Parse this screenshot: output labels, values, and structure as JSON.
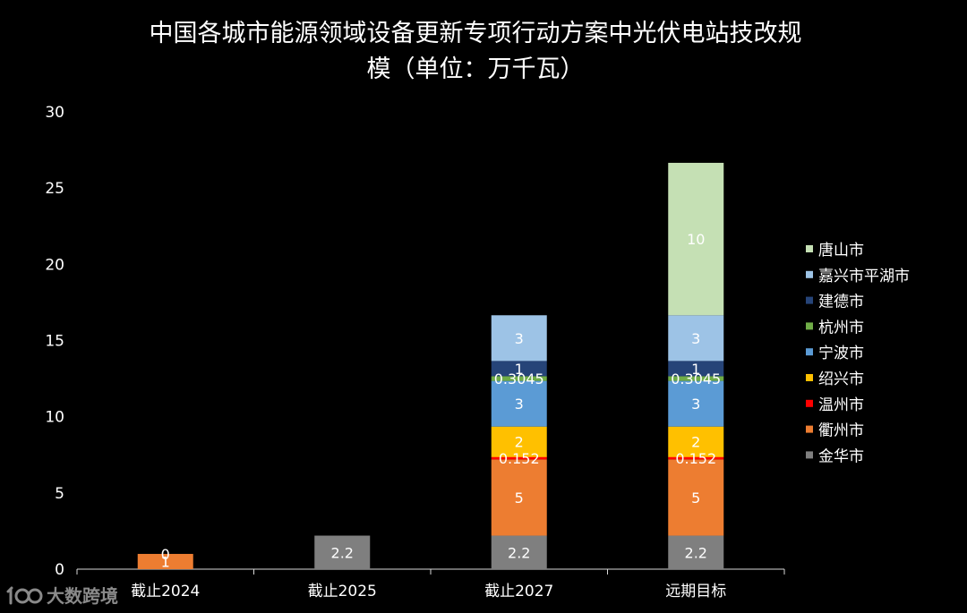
{
  "chart_data": {
    "type": "bar",
    "stacked": true,
    "title_lines": [
      "中国各城市能源领域设备更新专项行动方案中光伏电站技改规",
      "模（单位：万千瓦）"
    ],
    "categories": [
      "截止2024",
      "截止2025",
      "截止2027",
      "远期目标"
    ],
    "ylim": [
      0,
      30
    ],
    "yticks": [
      "0",
      "5",
      "10",
      "15",
      "20",
      "25",
      "30"
    ],
    "ytick_values": [
      0,
      5,
      10,
      15,
      20,
      25,
      30
    ],
    "grid": false,
    "legend_position": "right",
    "series": [
      {
        "name": "金华市",
        "color": "#7f7f7f",
        "values": [
          null,
          2.2,
          2.2,
          2.2
        ],
        "labels": [
          "",
          "2.2",
          "2.2",
          "2.2"
        ]
      },
      {
        "name": "衢州市",
        "color": "#ed7d31",
        "values": [
          1,
          null,
          5,
          5
        ],
        "labels": [
          "1",
          "",
          "5",
          "5"
        ]
      },
      {
        "name": "温州市",
        "color": "#ff0000",
        "values": [
          0,
          null,
          0.152,
          0.152
        ],
        "labels": [
          "0",
          "",
          "0.152",
          "0.152"
        ]
      },
      {
        "name": "绍兴市",
        "color": "#ffc000",
        "values": [
          null,
          null,
          2,
          2
        ],
        "labels": [
          "",
          "",
          "2",
          "2"
        ]
      },
      {
        "name": "宁波市",
        "color": "#5b9bd5",
        "values": [
          null,
          null,
          3,
          3
        ],
        "labels": [
          "",
          "",
          "3",
          "3"
        ]
      },
      {
        "name": "杭州市",
        "color": "#70ad47",
        "values": [
          null,
          null,
          0.3045,
          0.3045
        ],
        "labels": [
          "",
          "",
          "0.3045",
          "0.3045"
        ]
      },
      {
        "name": "建德市",
        "color": "#264478",
        "values": [
          null,
          null,
          1,
          1
        ],
        "labels": [
          "",
          "",
          "1",
          "1"
        ]
      },
      {
        "name": "嘉兴市平湖市",
        "color": "#9dc3e6",
        "values": [
          null,
          null,
          3,
          3
        ],
        "labels": [
          "",
          "",
          "3",
          "3"
        ]
      },
      {
        "name": "唐山市",
        "color": "#c5e0b4",
        "values": [
          null,
          null,
          null,
          10
        ],
        "labels": [
          "",
          "",
          "",
          "10"
        ]
      }
    ]
  },
  "watermark": {
    "icon": "100-logo-icon",
    "text": "大数跨境"
  }
}
